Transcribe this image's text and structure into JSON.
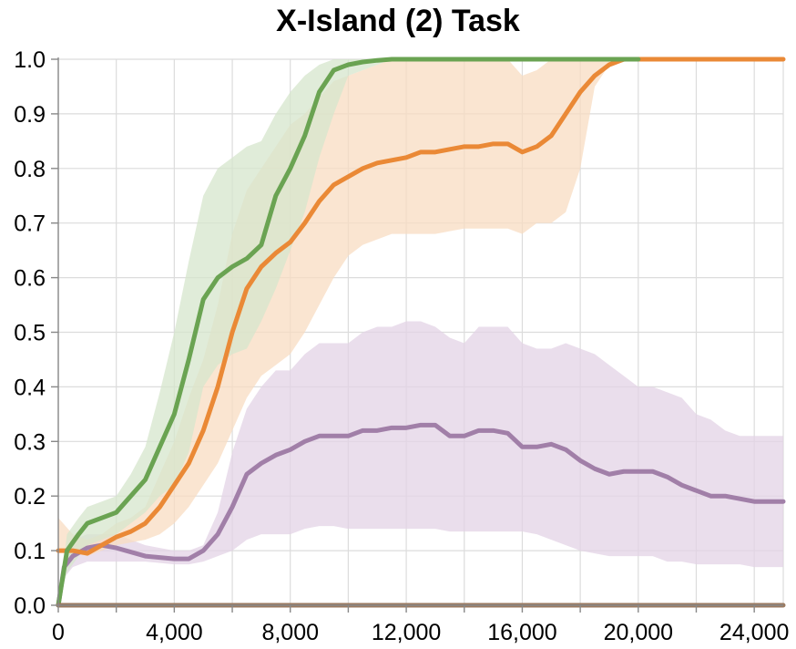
{
  "chart_data": {
    "type": "line",
    "title": "X-Island (2) Task",
    "xlabel": "",
    "ylabel": "",
    "xlim": [
      0,
      25000
    ],
    "ylim": [
      0,
      1
    ],
    "x_ticks": [
      0,
      4000,
      8000,
      12000,
      16000,
      20000,
      24000
    ],
    "x_tick_labels": [
      "0",
      "4,000",
      "8,000",
      "12,000",
      "16,000",
      "20,000",
      "24,000"
    ],
    "y_ticks": [
      0,
      0.1,
      0.2,
      0.3,
      0.4,
      0.5,
      0.6,
      0.7,
      0.8,
      0.9,
      1.0
    ],
    "y_tick_labels": [
      "0.0",
      "0.1",
      "0.2",
      "0.3",
      "0.4",
      "0.5",
      "0.6",
      "0.7",
      "0.8",
      "0.9",
      "1.0"
    ],
    "grid": true,
    "series": [
      {
        "color": "#a17fa8",
        "band_color": "#e3d3e6",
        "x": [
          0,
          200,
          500,
          1000,
          1500,
          2000,
          3000,
          4000,
          4500,
          5000,
          5500,
          6000,
          6500,
          7000,
          7500,
          8000,
          8500,
          9000,
          9500,
          10000,
          10500,
          11000,
          11500,
          12000,
          12500,
          13000,
          13500,
          14000,
          14500,
          15000,
          15500,
          16000,
          16500,
          17000,
          17500,
          18000,
          18500,
          19000,
          19500,
          20000,
          20500,
          21000,
          21500,
          22000,
          22500,
          23000,
          23500,
          24000,
          24500,
          25000
        ],
        "y": [
          0.0,
          0.07,
          0.09,
          0.105,
          0.11,
          0.105,
          0.09,
          0.085,
          0.085,
          0.1,
          0.13,
          0.18,
          0.24,
          0.26,
          0.275,
          0.285,
          0.3,
          0.31,
          0.31,
          0.31,
          0.32,
          0.32,
          0.325,
          0.325,
          0.33,
          0.33,
          0.31,
          0.31,
          0.32,
          0.32,
          0.315,
          0.29,
          0.29,
          0.295,
          0.285,
          0.265,
          0.25,
          0.24,
          0.245,
          0.245,
          0.245,
          0.235,
          0.22,
          0.21,
          0.2,
          0.2,
          0.195,
          0.19,
          0.19,
          0.19
        ],
        "lower": [
          0.0,
          0.05,
          0.07,
          0.08,
          0.08,
          0.08,
          0.08,
          0.075,
          0.075,
          0.08,
          0.09,
          0.1,
          0.12,
          0.13,
          0.13,
          0.13,
          0.14,
          0.145,
          0.145,
          0.14,
          0.14,
          0.14,
          0.14,
          0.14,
          0.14,
          0.14,
          0.135,
          0.135,
          0.135,
          0.135,
          0.135,
          0.135,
          0.13,
          0.12,
          0.11,
          0.1,
          0.095,
          0.09,
          0.09,
          0.09,
          0.09,
          0.08,
          0.08,
          0.075,
          0.075,
          0.075,
          0.075,
          0.07,
          0.07,
          0.07
        ],
        "upper": [
          0.0,
          0.09,
          0.12,
          0.13,
          0.13,
          0.13,
          0.11,
          0.1,
          0.1,
          0.11,
          0.17,
          0.28,
          0.36,
          0.4,
          0.43,
          0.43,
          0.46,
          0.48,
          0.48,
          0.48,
          0.5,
          0.51,
          0.51,
          0.52,
          0.52,
          0.51,
          0.49,
          0.48,
          0.51,
          0.51,
          0.51,
          0.48,
          0.47,
          0.47,
          0.48,
          0.47,
          0.46,
          0.44,
          0.42,
          0.4,
          0.4,
          0.39,
          0.38,
          0.35,
          0.34,
          0.32,
          0.31,
          0.31,
          0.31,
          0.31
        ]
      },
      {
        "color": "#ea8936",
        "band_color": "#f8dcc2",
        "x": [
          0,
          500,
          1000,
          1500,
          2000,
          2500,
          3000,
          3500,
          4000,
          4500,
          5000,
          5500,
          6000,
          6500,
          7000,
          7500,
          8000,
          8500,
          9000,
          9500,
          10000,
          10500,
          11000,
          11500,
          12000,
          12500,
          13000,
          13500,
          14000,
          14500,
          15000,
          15500,
          16000,
          16500,
          17000,
          17500,
          18000,
          18500,
          19000,
          19500,
          20000,
          20500,
          21000,
          22000,
          23000,
          24000,
          25000
        ],
        "y": [
          0.1,
          0.1,
          0.095,
          0.11,
          0.125,
          0.135,
          0.15,
          0.18,
          0.22,
          0.26,
          0.32,
          0.4,
          0.5,
          0.58,
          0.62,
          0.645,
          0.665,
          0.7,
          0.74,
          0.77,
          0.785,
          0.8,
          0.81,
          0.815,
          0.82,
          0.83,
          0.83,
          0.835,
          0.84,
          0.84,
          0.845,
          0.845,
          0.83,
          0.84,
          0.86,
          0.9,
          0.94,
          0.97,
          0.99,
          1.0,
          1.0,
          1.0,
          1.0,
          1.0,
          1.0,
          1.0,
          1.0
        ],
        "lower": [
          0.1,
          0.095,
          0.09,
          0.1,
          0.11,
          0.115,
          0.12,
          0.13,
          0.15,
          0.18,
          0.22,
          0.26,
          0.32,
          0.38,
          0.42,
          0.44,
          0.46,
          0.5,
          0.55,
          0.6,
          0.64,
          0.66,
          0.67,
          0.68,
          0.68,
          0.68,
          0.68,
          0.685,
          0.69,
          0.69,
          0.69,
          0.69,
          0.68,
          0.7,
          0.7,
          0.72,
          0.8,
          0.95,
          0.99,
          0.995,
          1.0,
          1.0,
          1.0,
          1.0,
          1.0,
          1.0,
          1.0
        ],
        "upper": [
          0.16,
          0.13,
          0.12,
          0.13,
          0.15,
          0.16,
          0.18,
          0.24,
          0.3,
          0.38,
          0.45,
          0.55,
          0.68,
          0.76,
          0.8,
          0.84,
          0.88,
          0.9,
          0.93,
          0.96,
          0.97,
          0.98,
          0.99,
          1.0,
          1.0,
          1.0,
          1.0,
          1.0,
          1.0,
          1.0,
          1.0,
          1.0,
          0.97,
          0.98,
          1.0,
          1.0,
          1.0,
          1.0,
          1.0,
          1.0,
          1.0,
          1.0,
          1.0,
          1.0,
          1.0,
          1.0,
          1.0
        ]
      },
      {
        "color": "#6aa352",
        "band_color": "#d5e6cc",
        "x": [
          0,
          300,
          700,
          1000,
          1500,
          2000,
          2500,
          3000,
          3500,
          4000,
          4500,
          5000,
          5500,
          6000,
          6500,
          7000,
          7500,
          8000,
          8500,
          9000,
          9500,
          10000,
          10500,
          11000,
          11500,
          12000,
          13000,
          14000,
          16000,
          18000,
          20000
        ],
        "y": [
          0.0,
          0.1,
          0.13,
          0.15,
          0.16,
          0.17,
          0.2,
          0.23,
          0.29,
          0.35,
          0.45,
          0.56,
          0.6,
          0.62,
          0.635,
          0.66,
          0.75,
          0.8,
          0.86,
          0.94,
          0.98,
          0.99,
          0.995,
          0.998,
          1.0,
          1.0,
          1.0,
          1.0,
          1.0,
          1.0,
          1.0
        ],
        "lower": [
          0.0,
          0.06,
          0.09,
          0.11,
          0.12,
          0.13,
          0.15,
          0.17,
          0.2,
          0.22,
          0.28,
          0.4,
          0.44,
          0.46,
          0.47,
          0.52,
          0.58,
          0.65,
          0.72,
          0.82,
          0.9,
          0.97,
          0.98,
          0.99,
          1.0,
          1.0,
          1.0,
          1.0,
          1.0,
          1.0,
          1.0
        ],
        "upper": [
          0.0,
          0.13,
          0.16,
          0.18,
          0.19,
          0.2,
          0.24,
          0.29,
          0.39,
          0.5,
          0.63,
          0.75,
          0.8,
          0.82,
          0.84,
          0.85,
          0.9,
          0.94,
          0.97,
          0.99,
          1.0,
          1.0,
          1.0,
          1.0,
          1.0,
          1.0,
          1.0,
          1.0,
          1.0,
          1.0,
          1.0
        ]
      },
      {
        "color": "#9b7a60",
        "band_color": "#9b7a60",
        "x": [
          0,
          25000
        ],
        "y": [
          0.0,
          0.0
        ],
        "lower": [
          0.0,
          0.0
        ],
        "upper": [
          0.0,
          0.0
        ]
      }
    ]
  }
}
